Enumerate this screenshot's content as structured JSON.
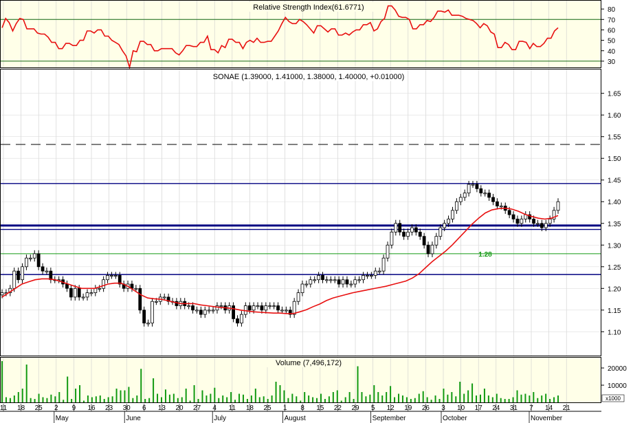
{
  "chart_data": [
    {
      "type": "line",
      "title": "Relative Strength Index(61.6771)",
      "ylim": [
        24,
        88
      ],
      "yticks": [
        30,
        40,
        50,
        60,
        70,
        80
      ],
      "reference_lines": [
        30,
        70
      ],
      "series": [
        {
          "values": [
            62,
            71,
            67,
            59,
            66,
            71,
            70,
            61,
            61,
            61,
            57,
            56,
            56,
            53,
            48,
            48,
            42,
            42,
            47,
            47,
            45,
            45,
            50,
            50,
            59,
            59,
            57,
            60,
            60,
            54,
            54,
            50,
            48,
            46,
            40,
            35,
            24,
            40,
            39,
            49,
            49,
            46,
            46,
            40,
            40,
            42,
            42,
            42,
            42,
            38,
            36,
            40,
            45,
            45,
            44,
            44,
            48,
            48,
            54,
            41,
            41,
            38,
            45,
            43,
            51,
            51,
            48,
            48,
            42,
            48,
            50,
            48,
            52,
            48,
            48,
            49,
            49,
            54,
            59,
            66,
            72,
            68,
            66,
            66,
            70,
            68,
            65,
            61,
            57,
            64,
            64,
            61,
            58,
            61,
            61,
            55,
            55,
            57,
            55,
            58,
            60,
            60,
            65,
            65,
            67,
            59,
            61,
            68,
            71,
            83,
            83,
            79,
            73,
            72,
            72,
            70,
            61,
            61,
            65,
            65,
            69,
            68,
            72,
            78,
            78,
            77,
            79,
            74,
            74,
            74,
            73,
            71,
            70,
            69,
            66,
            62,
            66,
            64,
            58,
            56,
            43,
            43,
            48,
            46,
            41,
            41,
            49,
            49,
            48,
            42,
            47,
            44,
            44,
            47,
            52,
            52,
            59,
            62
          ]
        }
      ]
    },
    {
      "type": "candlestick",
      "title": "SONAE (1.39000, 1.41000, 1.38000, 1.40000, +0.01000)",
      "ylim": [
        1.045,
        1.705
      ],
      "yticks": [
        1.1,
        1.15,
        1.2,
        1.25,
        1.3,
        1.35,
        1.4,
        1.45,
        1.5,
        1.55,
        1.6,
        1.65
      ],
      "horizontal_lines": [
        1.442,
        1.345,
        1.336,
        1.232
      ],
      "dashed_line": 1.532,
      "support_line": {
        "value": 1.28,
        "label": "1.28"
      },
      "closes": [
        1.19,
        1.19,
        1.2,
        1.24,
        1.22,
        1.25,
        1.27,
        1.27,
        1.28,
        1.25,
        1.24,
        1.24,
        1.22,
        1.22,
        1.22,
        1.21,
        1.2,
        1.18,
        1.2,
        1.18,
        1.18,
        1.19,
        1.19,
        1.2,
        1.2,
        1.22,
        1.23,
        1.23,
        1.23,
        1.21,
        1.2,
        1.21,
        1.2,
        1.2,
        1.15,
        1.12,
        1.12,
        1.17,
        1.17,
        1.18,
        1.18,
        1.17,
        1.17,
        1.16,
        1.17,
        1.16,
        1.16,
        1.15,
        1.15,
        1.14,
        1.15,
        1.15,
        1.15,
        1.16,
        1.16,
        1.15,
        1.16,
        1.13,
        1.12,
        1.14,
        1.16,
        1.15,
        1.16,
        1.16,
        1.15,
        1.16,
        1.16,
        1.16,
        1.15,
        1.15,
        1.15,
        1.14,
        1.17,
        1.19,
        1.21,
        1.21,
        1.22,
        1.22,
        1.23,
        1.22,
        1.22,
        1.22,
        1.22,
        1.21,
        1.22,
        1.21,
        1.21,
        1.22,
        1.22,
        1.23,
        1.23,
        1.23,
        1.24,
        1.24,
        1.27,
        1.3,
        1.33,
        1.35,
        1.33,
        1.32,
        1.33,
        1.34,
        1.33,
        1.32,
        1.3,
        1.28,
        1.3,
        1.32,
        1.34,
        1.35,
        1.36,
        1.38,
        1.4,
        1.41,
        1.42,
        1.44,
        1.44,
        1.43,
        1.42,
        1.42,
        1.41,
        1.4,
        1.39,
        1.39,
        1.38,
        1.37,
        1.36,
        1.35,
        1.36,
        1.37,
        1.36,
        1.35,
        1.35,
        1.34,
        1.35,
        1.36,
        1.38,
        1.4
      ],
      "moving_average": [
        1.18,
        1.19,
        1.2,
        1.21,
        1.215,
        1.22,
        1.222,
        1.222,
        1.22,
        1.215,
        1.21,
        1.205,
        1.2,
        1.2,
        1.2,
        1.205,
        1.21,
        1.212,
        1.212,
        1.205,
        1.195,
        1.185,
        1.178,
        1.176,
        1.175,
        1.172,
        1.168,
        1.165,
        1.165,
        1.165,
        1.162,
        1.16,
        1.158,
        1.156,
        1.155,
        1.153,
        1.15,
        1.148,
        1.146,
        1.145,
        1.144,
        1.143,
        1.143,
        1.142,
        1.142,
        1.146,
        1.151,
        1.158,
        1.164,
        1.172,
        1.178,
        1.182,
        1.186,
        1.19,
        1.193,
        1.196,
        1.199,
        1.202,
        1.205,
        1.209,
        1.213,
        1.217,
        1.224,
        1.234,
        1.248,
        1.262,
        1.274,
        1.286,
        1.3,
        1.316,
        1.332,
        1.348,
        1.362,
        1.374,
        1.381,
        1.384,
        1.385,
        1.383,
        1.378,
        1.371,
        1.366,
        1.362,
        1.36,
        1.362,
        1.368
      ],
      "xticks": [
        "11",
        "18",
        "25",
        "2",
        "9",
        "16",
        "23",
        "30",
        "6",
        "13",
        "20",
        "27",
        "4",
        "11",
        "18",
        "25",
        "1",
        "8",
        "15",
        "22",
        "29",
        "5",
        "12",
        "19",
        "26",
        "3",
        "10",
        "17",
        "24",
        "31",
        "7",
        "14",
        "21"
      ],
      "months": [
        "May",
        "June",
        "July",
        "August",
        "September",
        "October",
        "November"
      ]
    },
    {
      "type": "bar",
      "title": "Volume (7,496,172)",
      "ylim": [
        0,
        26000
      ],
      "yticks": [
        10000,
        20000
      ],
      "ytick_labels": [
        "10000",
        "20000"
      ],
      "unit_label": "x1000",
      "values": [
        24000,
        3000,
        2500,
        4000,
        6000,
        8000,
        22000,
        2500,
        2000,
        5000,
        3000,
        2500,
        4500,
        3500,
        6000,
        1500,
        15000,
        2000,
        8000,
        10000,
        1000,
        4000,
        3000,
        3500,
        4000,
        2000,
        3000,
        3500,
        8000,
        7000,
        7000,
        9000,
        2500,
        4000,
        19500,
        2000,
        2500,
        14000,
        5000,
        3000,
        7500,
        4500,
        5000,
        2500,
        3000,
        8000,
        1000,
        10000,
        2000,
        7000,
        4000,
        5000,
        8500,
        2500,
        4000,
        3000,
        6000,
        1500,
        5000,
        4500,
        2000,
        4000,
        8000,
        3000,
        3500,
        2000,
        4000,
        12000,
        10000,
        7000,
        2500,
        5000,
        3500,
        1000,
        6000,
        4000,
        3000,
        2500,
        5000,
        2000,
        3500,
        6000,
        7000,
        1000,
        3000,
        6000,
        2000,
        21000,
        6000,
        3500,
        4500,
        10000,
        6000,
        4000,
        6000,
        9500,
        3000,
        5000,
        4000,
        3000,
        2000,
        2500,
        5000,
        6500,
        3000,
        1500,
        4000,
        2000,
        8000,
        4500,
        6000,
        3500,
        12000,
        5000,
        7000,
        11000,
        4000,
        4500,
        8000,
        4000,
        3000,
        5000,
        2500,
        2000,
        2000,
        3000,
        7000,
        4500,
        5000,
        4000,
        6000,
        2500,
        4000,
        5000,
        2000,
        3000,
        4000
      ]
    }
  ],
  "colors": {
    "panel_bg": "#FFFFE8",
    "price_bg": "#FFFFFF",
    "rsi_line": "#E81010",
    "ma_line": "#E81010",
    "volume_bar": "#119911",
    "hline": "#000080",
    "support": "#119911"
  }
}
